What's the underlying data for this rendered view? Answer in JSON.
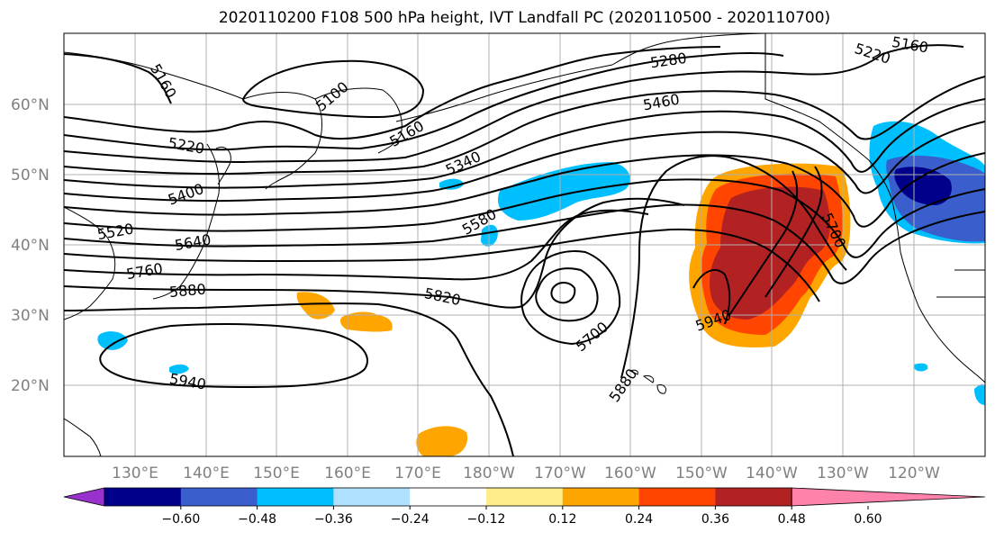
{
  "title": "2020110200 F108 500 hPa height, IVT Landfall PC (2020110500 - 2020110700)",
  "map": {
    "latitude_labels": [
      "60°N",
      "50°N",
      "40°N",
      "30°N",
      "20°N"
    ],
    "longitude_labels": [
      "130°E",
      "140°E",
      "150°E",
      "160°E",
      "170°E",
      "180°W",
      "170°W",
      "160°W",
      "150°W",
      "140°W",
      "130°W",
      "120°W"
    ],
    "contour_labels": [
      "5160",
      "5100",
      "5160",
      "5220",
      "5280",
      "5160",
      "5220",
      "5340",
      "5460",
      "5400",
      "5580",
      "5520",
      "5640",
      "5760",
      "5880",
      "5820",
      "5700",
      "5700",
      "5940",
      "5880",
      "5940"
    ]
  },
  "colorbar": {
    "colors": [
      "#9932CC",
      "#00008B",
      "#3A5FCD",
      "#00BFFF",
      "#B0E2FF",
      "#FFFFFF",
      "#FFEC8B",
      "#FFA500",
      "#FF4500",
      "#B22222",
      "#FF82AB"
    ],
    "ticks": [
      "−0.60",
      "−0.48",
      "−0.36",
      "−0.24",
      "−0.12",
      "0.12",
      "0.24",
      "0.36",
      "0.48",
      "0.60"
    ]
  },
  "colors": {
    "land_outline": "#000000",
    "grid": "#b0b0b0",
    "contour": "#000000"
  }
}
